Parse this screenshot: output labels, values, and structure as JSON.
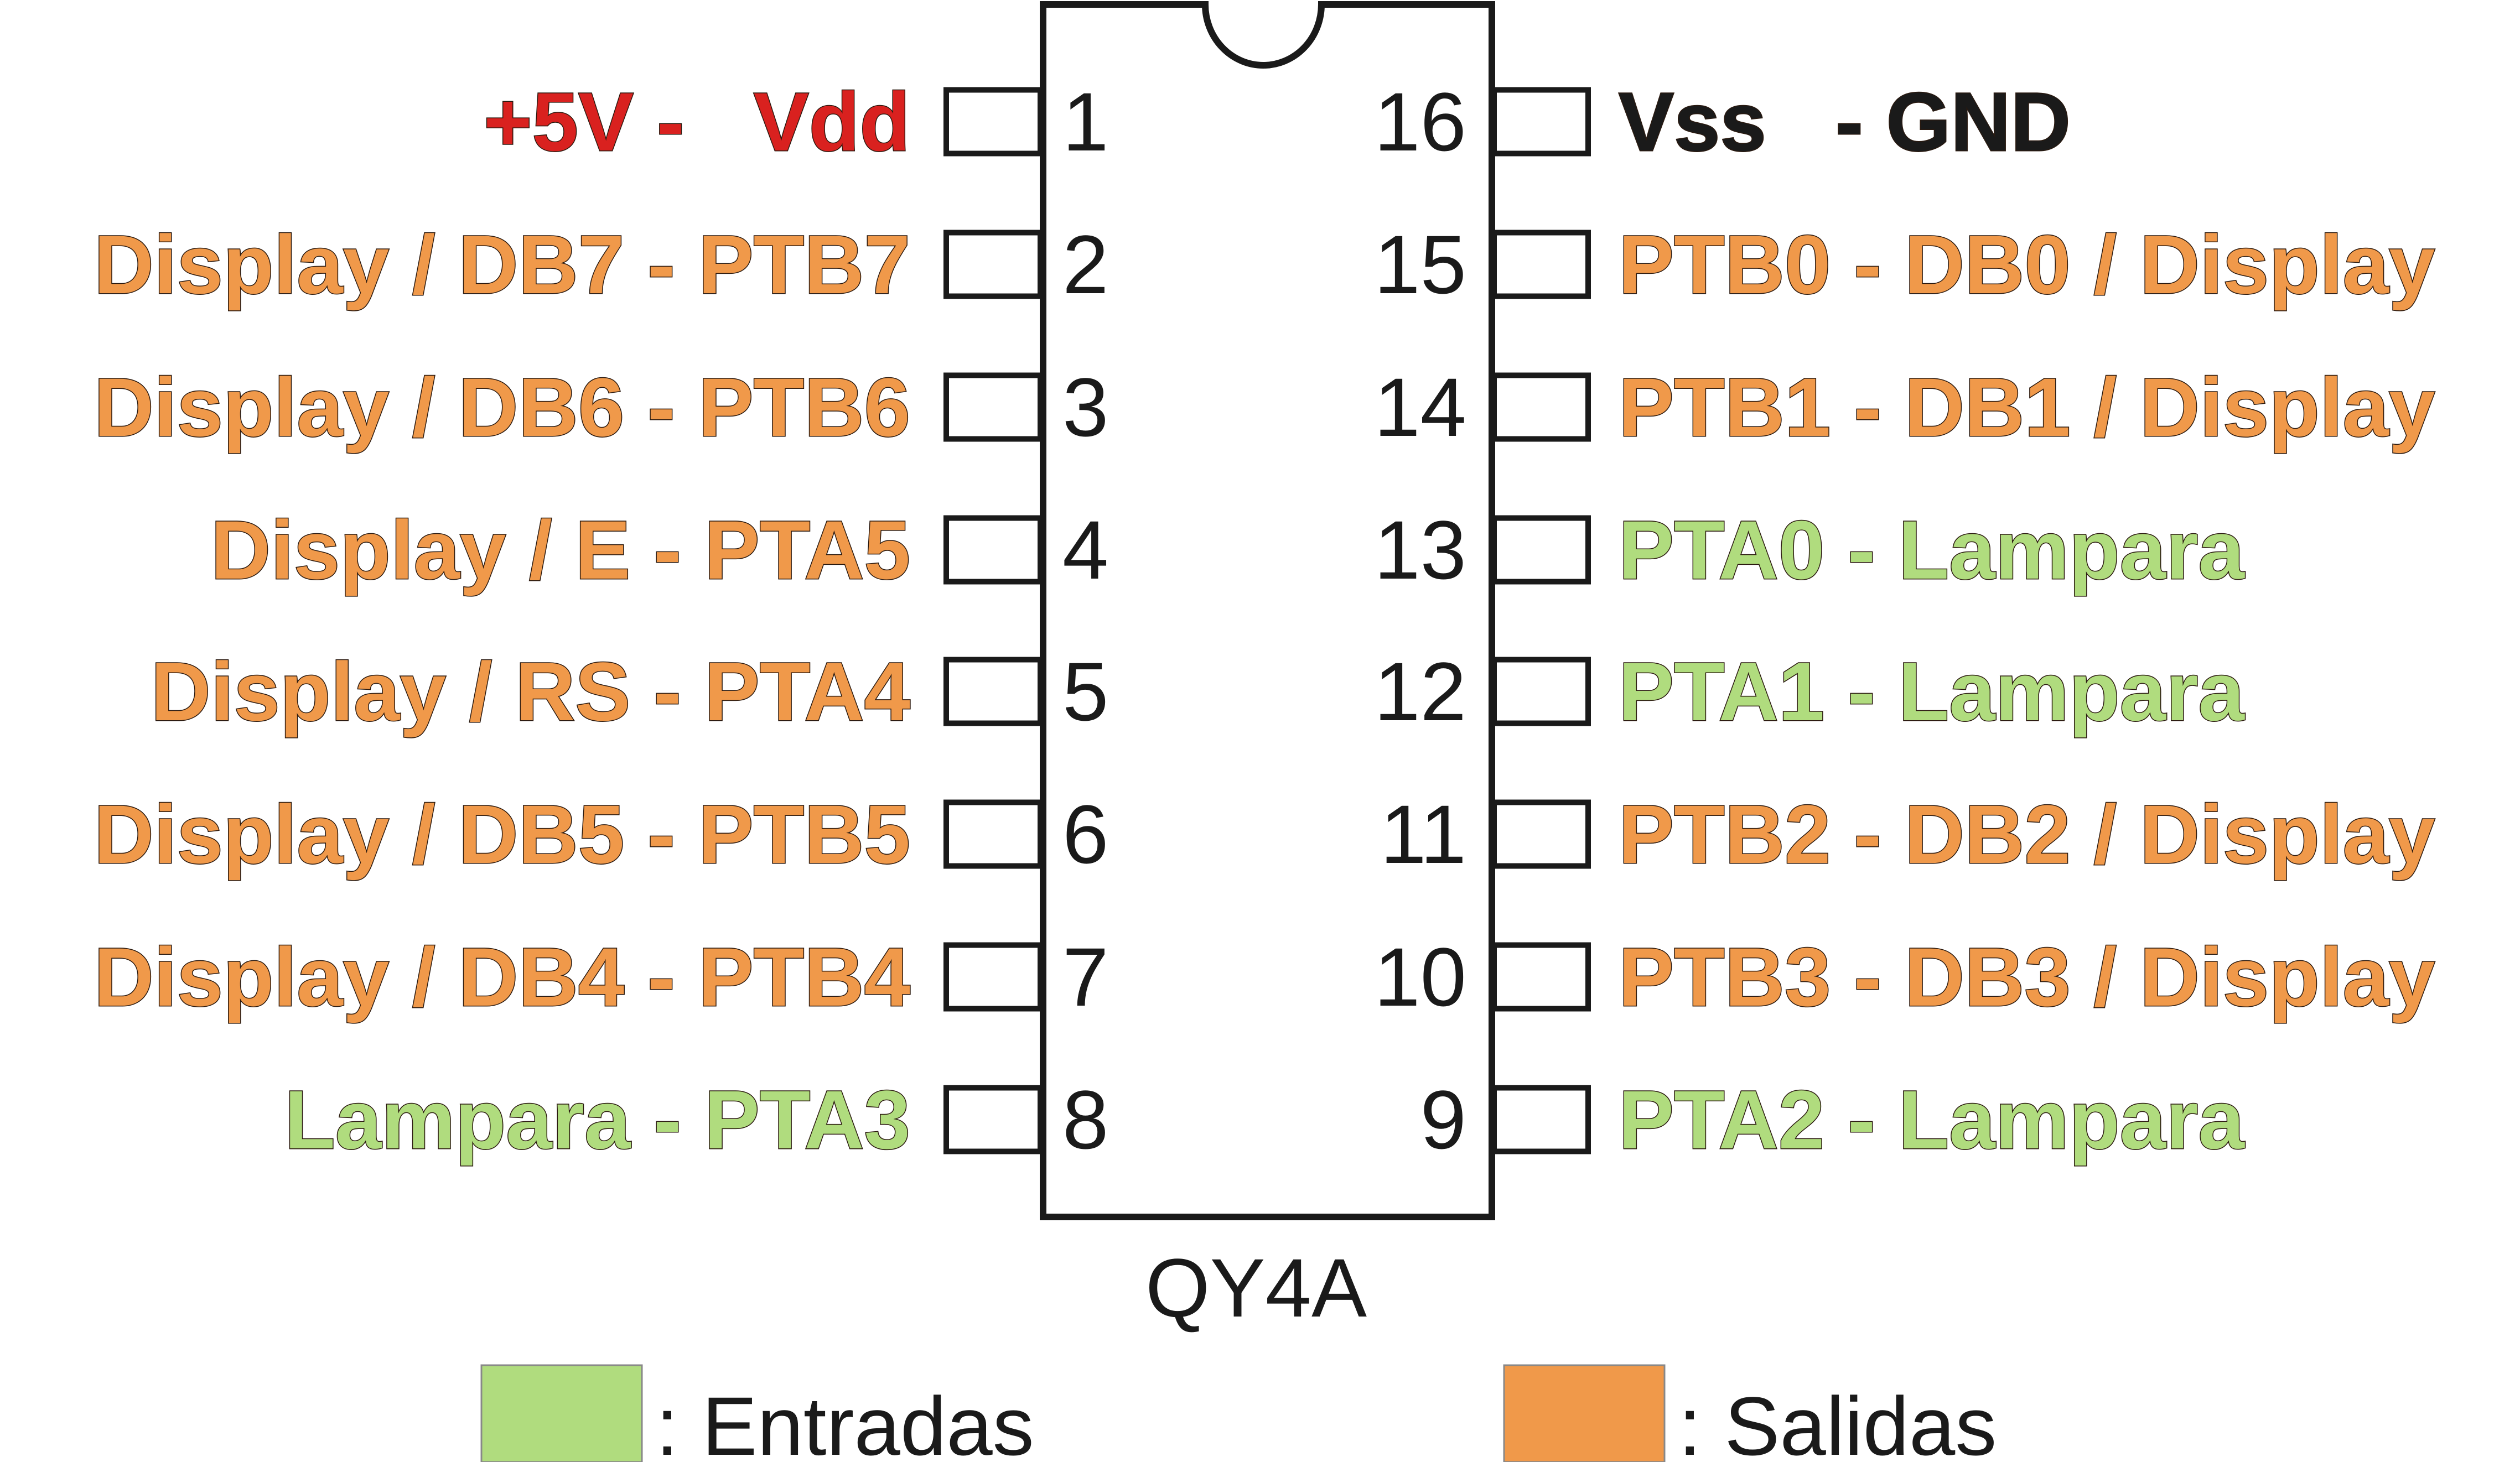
{
  "chip": {
    "name": "QY4A",
    "left_pins": [
      {
        "number": "1",
        "label": "+5V -   Vdd",
        "role": "power"
      },
      {
        "number": "2",
        "label": "Display / DB7 - PTB7",
        "role": "output"
      },
      {
        "number": "3",
        "label": "Display / DB6 - PTB6",
        "role": "output"
      },
      {
        "number": "4",
        "label": "Display / E - PTA5",
        "role": "output"
      },
      {
        "number": "5",
        "label": "Display / RS - PTA4",
        "role": "output"
      },
      {
        "number": "6",
        "label": "Display / DB5 - PTB5",
        "role": "output"
      },
      {
        "number": "7",
        "label": "Display / DB4 - PTB4",
        "role": "output"
      },
      {
        "number": "8",
        "label": "Lampara - PTA3",
        "role": "input"
      }
    ],
    "right_pins": [
      {
        "number": "16",
        "label": "Vss   - GND",
        "role": "ground"
      },
      {
        "number": "15",
        "label": "PTB0 - DB0 / Display",
        "role": "output"
      },
      {
        "number": "14",
        "label": "PTB1 - DB1 / Display",
        "role": "output"
      },
      {
        "number": "13",
        "label": "PTA0 - Lampara",
        "role": "input"
      },
      {
        "number": "12",
        "label": "PTA1 - Lampara",
        "role": "input"
      },
      {
        "number": "11",
        "label": "PTB2 - DB2 / Display",
        "role": "output"
      },
      {
        "number": "10",
        "label": "PTB3 - DB3 / Display",
        "role": "output"
      },
      {
        "number": "9",
        "label": "PTA2 - Lampara",
        "role": "input"
      }
    ]
  },
  "legend": [
    {
      "label": ": Entradas",
      "role": "input"
    },
    {
      "label": ": Salidas",
      "role": "output"
    }
  ],
  "colors": {
    "input": "#b0dc7e",
    "output": "#f0994a",
    "power": "#d9211f",
    "ground": "#1a1a1a"
  }
}
